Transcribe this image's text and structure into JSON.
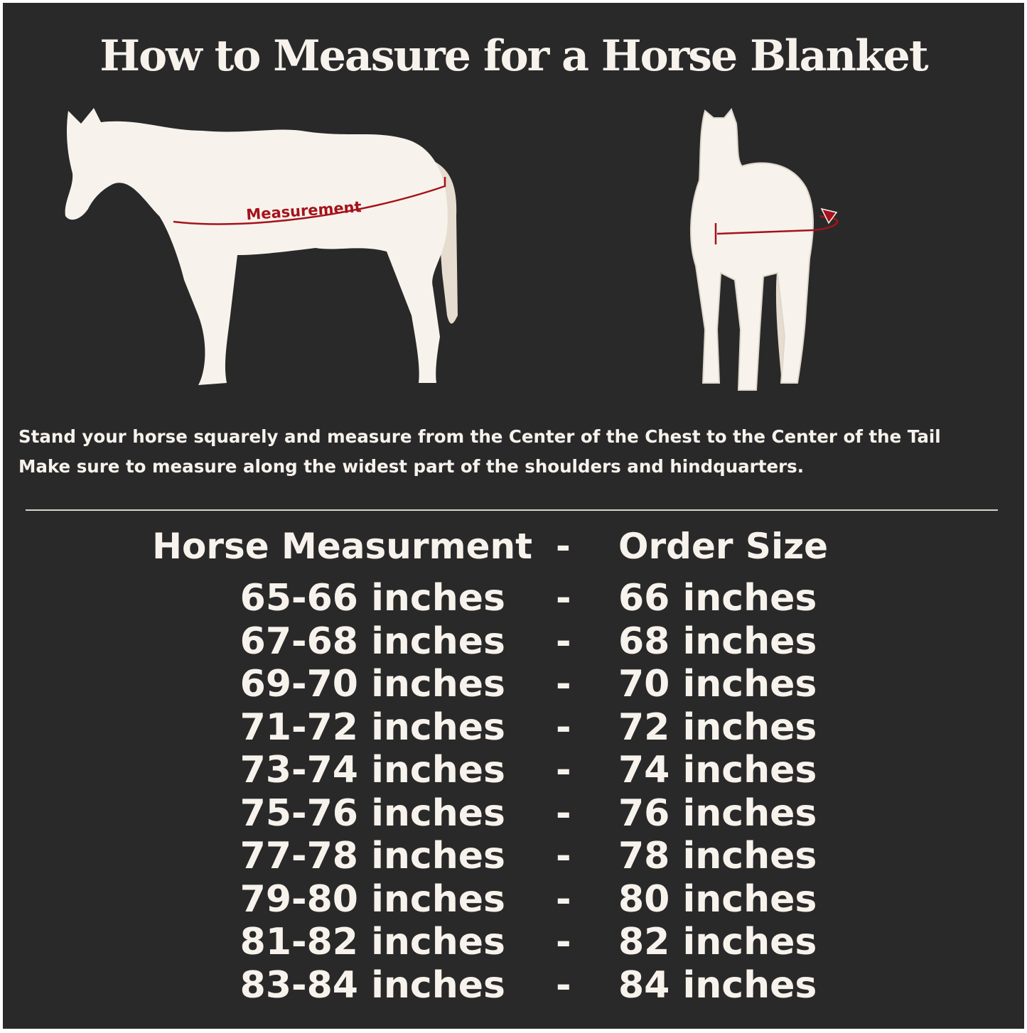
{
  "title": "How to Measure for a Horse Blanket",
  "illustration": {
    "side_label": "Measurement",
    "accent_color": "#a5121b",
    "horse_color": "#f7f3ec",
    "background": "#2a292a"
  },
  "instructions": [
    "Stand your horse squarely and measure from the Center of the Chest to the Center of the Tail",
    "Make sure to measure along the widest part of the shoulders and hindquarters."
  ],
  "table": {
    "headers": [
      "Horse Measurment",
      "-",
      "Order Size"
    ],
    "rows": [
      [
        "65-66 inches",
        "-",
        "66 inches"
      ],
      [
        "67-68 inches",
        "-",
        "68 inches"
      ],
      [
        "69-70 inches",
        "-",
        "70 inches"
      ],
      [
        "71-72 inches",
        "-",
        "72 inches"
      ],
      [
        "73-74 inches",
        "-",
        "74 inches"
      ],
      [
        "75-76 inches",
        "-",
        "76 inches"
      ],
      [
        "77-78 inches",
        "-",
        "78 inches"
      ],
      [
        "79-80 inches",
        "-",
        "80 inches"
      ],
      [
        "81-82 inches",
        "-",
        "82 inches"
      ],
      [
        "83-84 inches",
        "-",
        "84 inches"
      ]
    ]
  }
}
